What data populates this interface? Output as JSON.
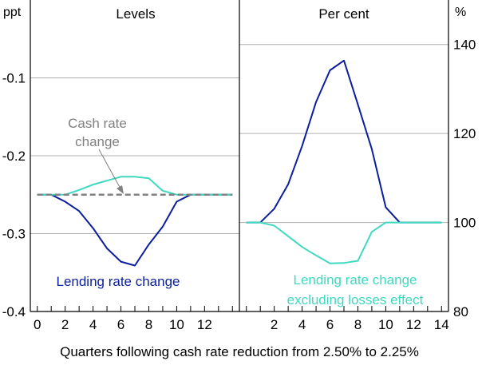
{
  "chart_data": [
    {
      "type": "line",
      "title": "Levels",
      "unit_label": "ppt",
      "ylim": [
        -0.4,
        0
      ],
      "yticks": [
        -0.1,
        -0.2,
        -0.3,
        -0.4
      ],
      "xlim": [
        -0.5,
        14.5
      ],
      "xticks": [
        0,
        2,
        4,
        6,
        8,
        10,
        12
      ],
      "series": [
        {
          "name": "Lending rate change",
          "color": "#0b1e9c",
          "x": [
            0,
            1,
            2,
            3,
            4,
            5,
            6,
            7,
            8,
            9,
            10,
            11,
            12,
            13,
            14
          ],
          "values": [
            -0.25,
            -0.25,
            -0.259,
            -0.271,
            -0.293,
            -0.319,
            -0.336,
            -0.341,
            -0.314,
            -0.291,
            -0.259,
            -0.25,
            -0.25,
            -0.25,
            -0.25
          ]
        },
        {
          "name": "Lending rate change excluding losses effect",
          "color": "#3fd9c0",
          "x": [
            0,
            1,
            2,
            3,
            4,
            5,
            6,
            7,
            8,
            9,
            10,
            11,
            12,
            13,
            14
          ],
          "values": [
            -0.25,
            -0.25,
            -0.25,
            -0.244,
            -0.237,
            -0.232,
            -0.227,
            -0.227,
            -0.229,
            -0.245,
            -0.25,
            -0.25,
            -0.25,
            -0.25,
            -0.25
          ]
        },
        {
          "name": "Cash rate change",
          "color": "#808080",
          "dashed": true,
          "x": [
            0,
            14
          ],
          "values": [
            -0.25,
            -0.25
          ]
        }
      ],
      "annotations": [
        {
          "text": "Cash rate change",
          "lines": [
            "Cash rate",
            "change"
          ],
          "color": "#808080"
        },
        {
          "text": "Lending rate change",
          "color": "#0b1e9c"
        }
      ]
    },
    {
      "type": "line",
      "title": "Per cent",
      "unit_label": "%",
      "ylim": [
        80,
        150
      ],
      "yticks": [
        140,
        120,
        100,
        80
      ],
      "xlim": [
        -0.5,
        14.5
      ],
      "xticks": [
        2,
        4,
        6,
        8,
        10,
        12,
        14
      ],
      "series": [
        {
          "name": "Lending rate change",
          "color": "#0b1e9c",
          "x": [
            0,
            1,
            2,
            3,
            4,
            5,
            6,
            7,
            8,
            9,
            10,
            11,
            12,
            13,
            14
          ],
          "values": [
            100,
            100,
            103.1,
            108.6,
            117.2,
            127.1,
            134.2,
            136.4,
            126.5,
            116.5,
            103.4,
            100,
            100,
            100,
            100
          ]
        },
        {
          "name": "Lending rate change excluding losses effect",
          "color": "#3fd9c0",
          "x": [
            0,
            1,
            2,
            3,
            4,
            5,
            6,
            7,
            8,
            9,
            10,
            11,
            12,
            13,
            14
          ],
          "values": [
            100,
            100,
            99.3,
            96.9,
            94.5,
            92.6,
            90.8,
            90.9,
            91.4,
            97.9,
            100,
            100,
            100,
            100,
            100
          ]
        }
      ],
      "annotations": [
        {
          "text": "Lending rate change excluding losses effect",
          "lines": [
            "Lending rate change",
            "excluding losses effect"
          ],
          "color": "#3fd9c0"
        }
      ]
    }
  ],
  "xlabel": "Quarters following cash rate reduction from 2.50% to 2.25%"
}
